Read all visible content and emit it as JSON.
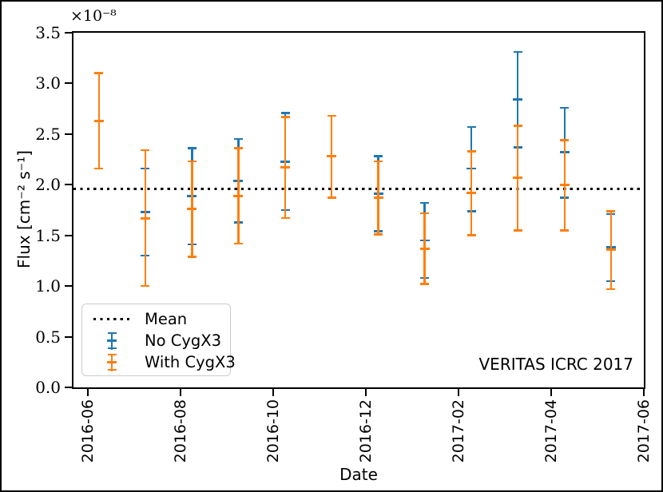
{
  "chart_data": {
    "type": "errorbar",
    "title": "",
    "xlabel": "Date",
    "ylabel": "Flux [cm⁻² s⁻¹]",
    "offset_text": "×10⁻⁸",
    "watermark": "VERITAS ICRC 2017",
    "grid": false,
    "ylim": [
      0.0,
      3.5
    ],
    "yticks": [
      0.0,
      0.5,
      1.0,
      1.5,
      2.0,
      2.5,
      3.0,
      3.5
    ],
    "xlim_months": [
      -0.31,
      12.0
    ],
    "xticks": [
      {
        "label": "2016-06",
        "m": 0
      },
      {
        "label": "2016-08",
        "m": 2
      },
      {
        "label": "2016-10",
        "m": 4
      },
      {
        "label": "2016-12",
        "m": 6
      },
      {
        "label": "2017-02",
        "m": 8
      },
      {
        "label": "2017-04",
        "m": 10
      },
      {
        "label": "2017-06",
        "m": 12
      }
    ],
    "mean_value": 1.96,
    "categories": [
      "2016-06",
      "2016-07",
      "2016-08",
      "2016-09",
      "2016-10",
      "2016-11",
      "2016-12",
      "2017-01",
      "2017-02",
      "2017-03",
      "2017-04",
      "2017-05"
    ],
    "x_months": [
      0.24,
      1.24,
      2.25,
      3.25,
      4.26,
      5.26,
      6.27,
      7.27,
      8.28,
      9.28,
      10.29,
      11.29
    ],
    "series": [
      {
        "name": "No CygX3",
        "color": "#1f77b4",
        "center": [
          null,
          1.73,
          1.89,
          2.04,
          2.23,
          null,
          1.91,
          1.45,
          2.16,
          2.84,
          2.32,
          1.38
        ],
        "lo": [
          null,
          1.3,
          1.41,
          1.63,
          1.75,
          null,
          1.54,
          1.08,
          1.74,
          2.37,
          1.87,
          1.05
        ],
        "hi": [
          null,
          2.16,
          2.36,
          2.45,
          2.71,
          null,
          2.28,
          1.82,
          2.57,
          3.31,
          2.76,
          1.71
        ]
      },
      {
        "name": "With CygX3",
        "color": "#ff7f0e",
        "center": [
          2.63,
          1.67,
          1.76,
          1.89,
          2.17,
          2.28,
          1.87,
          1.37,
          1.92,
          2.07,
          2.0,
          1.36
        ],
        "lo": [
          2.16,
          1.0,
          1.29,
          1.42,
          1.67,
          1.87,
          1.51,
          1.02,
          1.5,
          1.55,
          1.55,
          0.97
        ],
        "hi": [
          3.1,
          2.34,
          2.23,
          2.36,
          2.67,
          2.68,
          2.23,
          1.72,
          2.33,
          2.58,
          2.44,
          1.74
        ]
      }
    ],
    "legend": {
      "position": "lower left",
      "items": [
        {
          "label": "Mean",
          "style": "dotted-line",
          "color": "#000000"
        },
        {
          "label": "No CygX3",
          "style": "errorbar",
          "color": "#1f77b4"
        },
        {
          "label": "With CygX3",
          "style": "errorbar",
          "color": "#ff7f0e"
        }
      ]
    }
  }
}
